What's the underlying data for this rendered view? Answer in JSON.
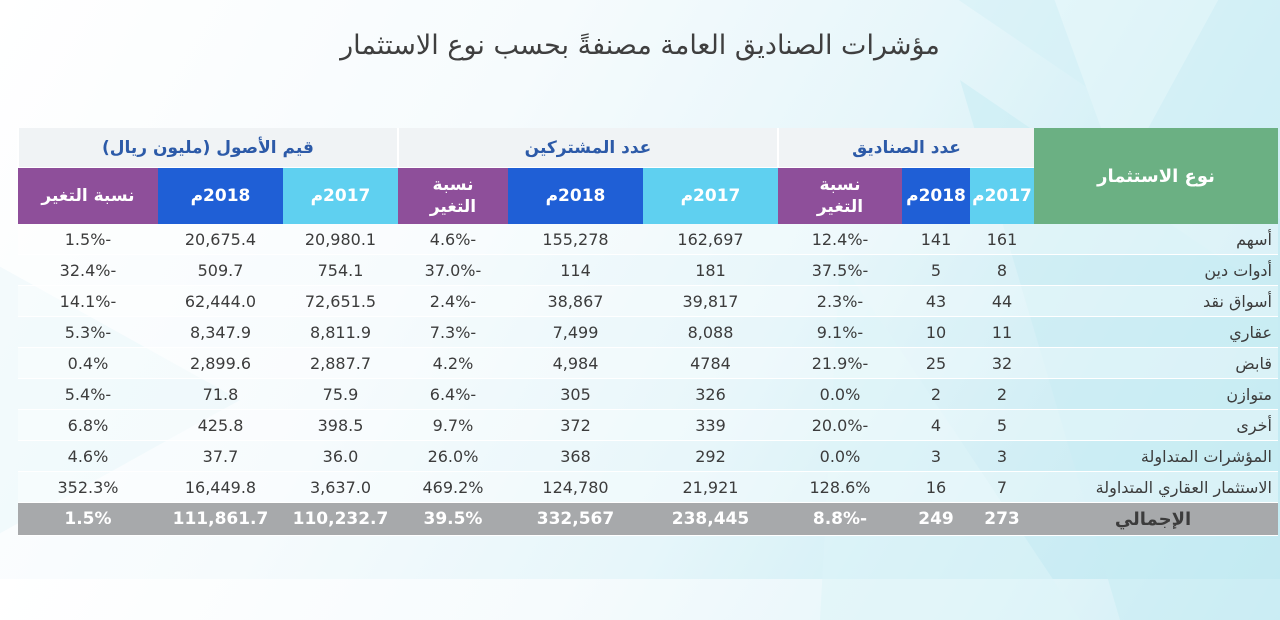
{
  "title": "مؤشرات الصناديق العامة مصنفةً بحسب نوع الاستثمار",
  "headers": {
    "type": "نوع الاستثمار",
    "groups": [
      "عدد الصناديق",
      "عدد المشتركين",
      "قيم الأصول (مليون ريال)"
    ],
    "y2017": "2017م",
    "y2018": "2018م",
    "pct": "نسبة التغير",
    "pct_top": "نسبة",
    "pct_bottom": "التغير"
  },
  "rows": [
    {
      "name": "أسهم",
      "f17": "161",
      "f18": "141",
      "fp": "-12.4%",
      "s17": "162,697",
      "s18": "155,278",
      "sp": "-4.6%",
      "a17": "20,980.1",
      "a18": "20,675.4",
      "ap": "-1.5%"
    },
    {
      "name": "أدوات دين",
      "f17": "8",
      "f18": "5",
      "fp": "-37.5%",
      "s17": "181",
      "s18": "114",
      "sp": "-37.0%",
      "a17": "754.1",
      "a18": "509.7",
      "ap": "-32.4%"
    },
    {
      "name": "أسواق نقد",
      "f17": "44",
      "f18": "43",
      "fp": "-2.3%",
      "s17": "39,817",
      "s18": "38,867",
      "sp": "-2.4%",
      "a17": "72,651.5",
      "a18": "62,444.0",
      "ap": "-14.1%"
    },
    {
      "name": "عقاري",
      "f17": "11",
      "f18": "10",
      "fp": "-9.1%",
      "s17": "8,088",
      "s18": "7,499",
      "sp": "-7.3%",
      "a17": "8,811.9",
      "a18": "8,347.9",
      "ap": "-5.3%"
    },
    {
      "name": "قابض",
      "f17": "32",
      "f18": "25",
      "fp": "-21.9%",
      "s17": "4784",
      "s18": "4,984",
      "sp": "4.2%",
      "a17": "2,887.7",
      "a18": "2,899.6",
      "ap": "0.4%"
    },
    {
      "name": "متوازن",
      "f17": "2",
      "f18": "2",
      "fp": "0.0%",
      "s17": "326",
      "s18": "305",
      "sp": "-6.4%",
      "a17": "75.9",
      "a18": "71.8",
      "ap": "-5.4%"
    },
    {
      "name": "أخرى",
      "f17": "5",
      "f18": "4",
      "fp": "-20.0%",
      "s17": "339",
      "s18": "372",
      "sp": "9.7%",
      "a17": "398.5",
      "a18": "425.8",
      "ap": "6.8%"
    },
    {
      "name": "المؤشرات المتداولة",
      "f17": "3",
      "f18": "3",
      "fp": "0.0%",
      "s17": "292",
      "s18": "368",
      "sp": "26.0%",
      "a17": "36.0",
      "a18": "37.7",
      "ap": "4.6%"
    },
    {
      "name": "الاستثمار العقاري المتداولة",
      "f17": "7",
      "f18": "16",
      "fp": "128.6%",
      "s17": "21,921",
      "s18": "124,780",
      "sp": "469.2%",
      "a17": "3,637.0",
      "a18": "16,449.8",
      "ap": "352.3%"
    }
  ],
  "total": {
    "name": "الإجمالي",
    "f17": "273",
    "f18": "249",
    "fp": "-8.8%",
    "s17": "238,445",
    "s18": "332,567",
    "sp": "39.5%",
    "a17": "110,232.7",
    "a18": "111,861.7",
    "ap": "1.5%"
  },
  "colors": {
    "green": "#6bb083",
    "light_blue": "#5fd0f0",
    "blue": "#1f5fd6",
    "purple": "#8e4f9a",
    "total_gray": "#a7a9ab",
    "group_text": "#2c5aa8"
  }
}
